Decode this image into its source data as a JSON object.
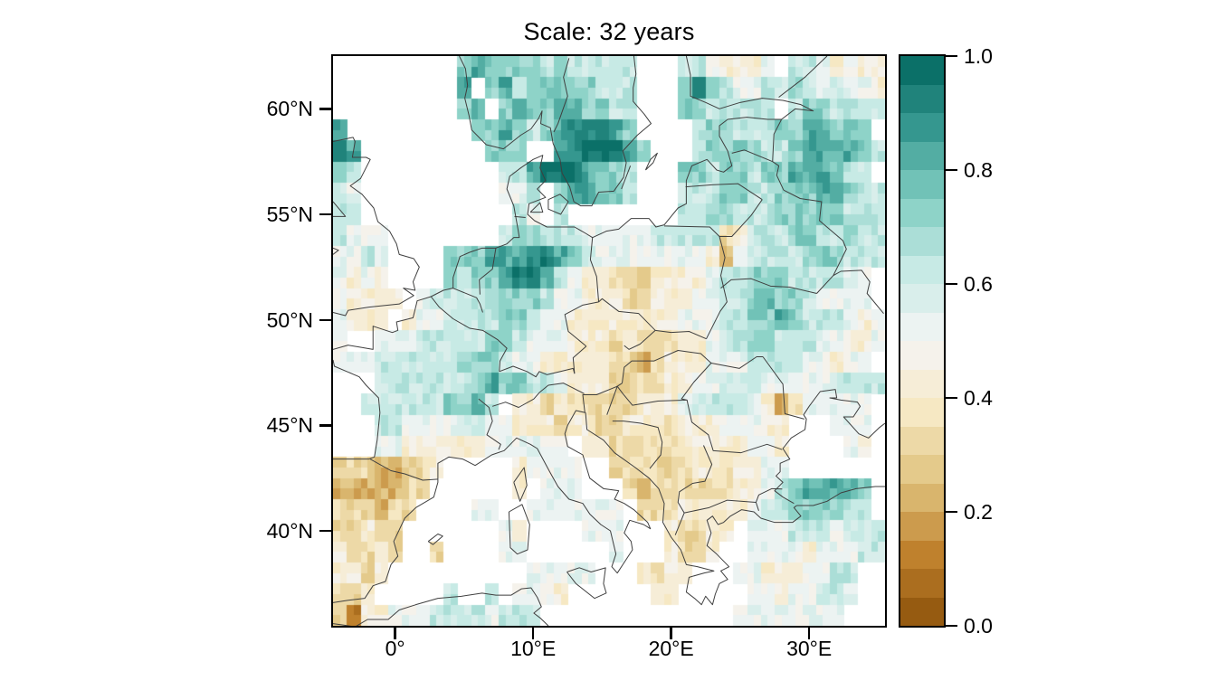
{
  "figure": {
    "title": "Scale: 32 years",
    "background_color": "#ffffff",
    "map_line_color": "#3f3f3f",
    "frame_color": "#000000"
  },
  "chart_data": {
    "type": "heatmap",
    "title": "Scale: 32 years",
    "description": "Gridded value field (0–1) over a lon/lat map of Europe with coastlines and country borders; white cells = no data / sea",
    "x_axis": {
      "range": [
        -4.5,
        35.5
      ],
      "ticks": [
        {
          "label": "0°",
          "value": 0
        },
        {
          "label": "10°E",
          "value": 10
        },
        {
          "label": "20°E",
          "value": 20
        },
        {
          "label": "30°E",
          "value": 30
        }
      ]
    },
    "y_axis": {
      "range": [
        35.5,
        62.5
      ],
      "ticks": [
        {
          "label": "40°N",
          "value": 40
        },
        {
          "label": "45°N",
          "value": 45
        },
        {
          "label": "50°N",
          "value": 50
        },
        {
          "label": "55°N",
          "value": 55
        },
        {
          "label": "60°N",
          "value": 60
        }
      ]
    },
    "colorbar": {
      "position": "right",
      "range": [
        0,
        1
      ],
      "n_bands": 20,
      "colormap_name": "BrBG-style brown–teal diverging",
      "colors": [
        "#8c510a",
        "#bf812d",
        "#dfc27d",
        "#f6e8c3",
        "#f5f5f5",
        "#c7eae5",
        "#80cdc1",
        "#35978f",
        "#01665e"
      ],
      "ticks": [
        {
          "label": "0.0",
          "value": 0.0
        },
        {
          "label": "0.2",
          "value": 0.2
        },
        {
          "label": "0.4",
          "value": 0.4
        },
        {
          "label": "0.6",
          "value": 0.6
        },
        {
          "label": "0.8",
          "value": 0.8
        },
        {
          "label": "1.0",
          "value": 1.0
        }
      ]
    },
    "grid": {
      "encoding": "one char per 1°×1° cell, row 0 = lat band 62.5–61.5N, col 0 = lon band -4.5–-3.5E; digit d ⇒ value d/10, 'a' ⇒ 1.0, '.' ⇒ no data (white)",
      "lon_min": -4.5,
      "lat_max": 62.5,
      "cell_deg": 1,
      "rows": [
        ".........787777676666 6..6654445.6654544",
        ".........8.78677777666..797655667656554",
        ".........78.7877887766..7766666.6776666",
        "8.........77876789998 7....677 6667788777",
        "98........777..89aa987...677776678888766",
        "76.............6689a98776...77677677888766",
        "65..........556.788776...666776677788766",
        "66...........65.6.......6677666777777666",
        "6555........677666555566 6663466677667666",
        "5565....777888998765555555 42566667776666",
        "5454....776778998654433344 4566777666655",
        "54444.56666677765544433444556678776 65555",
        "5444.455666677655444444445556677876665455",
        "5..5556666677655544434333445667766655445",
        "555666666677765544444332344455566 6655455",
        "...66666667877665444333344556665555 56666",
        "..6666666778 6.4434333334445666654235 5555",
        "...66555566554443443344434445554 4...555",
        "...5544444455 5555.4433333444445 54....54.",
        "33322334.....455 55..3333334434455.......",
        "2222233......4.555...33233333445678 8887",
        "333233....55..5555555.333444445667777 66",
        "33433.......54....555...43344.55566 65666",
        "43343..3....55......5...4334..5555455566",
        "4434..........555 55...4344...554445566",
        "334......6..6.554......44.....55455665",
        "31445556 66665666.............55555555"
      ],
      "rows_clean": [
        ".........78777767666 66...6654445.6654544",
        ".........8.7867777766 6...797655667656554",
        ".........78.787788776 6...7766666.6776666",
        "8.........7787678999 87.....677666 7788777",
        "98.........777..89aa98 7...677776678888766",
        "76..........668 9a98776...77677677888766",
        "65..........556.78877 6...666776677788766",
        "66...........65.6........667766677777766 6",
        "6555........67766655 55666663466677667666",
        "5565....777888 99876555555554256666777 6666",
        "5454....77677899 86544333444456677766 6655",
        "54444.566666777655444 4334445566787766 5555",
        "5444.4556667765 54444444455566778766 65455",
        "5..5556666677655544434 333445667766655445",
        "55566666677765 54444432344455566665545 5",
        "...666666678776 6544433334455666555556666",
        "..66666677 86.44343333344456666542355555",
        "...6655566554443443 34443344455544...555",
        "...55444444555555.44333 3344444554....54.",
        "33322334.....45555..333333 4434455.......",
        "2222233......4.555...3233333344 56788887",
        "333233....55..5555555.33344444566 777766",
        "33433.......54....555...43 344.5556665666",
        "43343..3....55......5...43 34..5555455566",
        "4434..........5555 5...4344...554445566",
        "334.....6..6.554.......44.....554556 65",
        "31445556 6665666..............55555555"
      ],
      "rows_final": [
        ".........7877776766666...6654445.6654544",
        ".........8.78677777666...797655667656554",
        ".........78.7877887766...7766666.6776666",
        "8.........7787678999 87....677666 7788777",
        "98.........777..89aa987...677776678888766",
        "76..........66 89a9877 6...77677677888766"
      ]
    }
  }
}
